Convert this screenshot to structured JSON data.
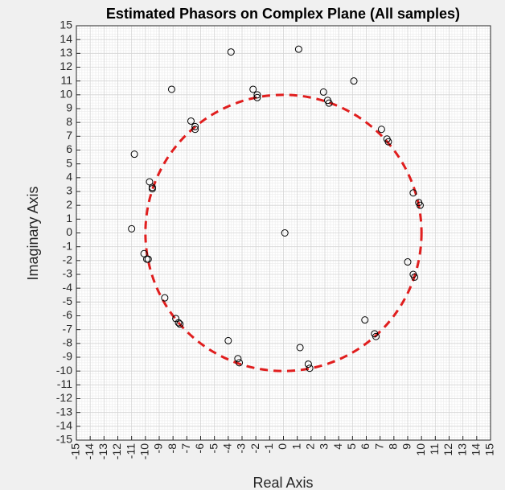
{
  "chart_data": {
    "type": "scatter",
    "title": "Estimated Phasors on Complex Plane (All samples)",
    "xlabel": "Real Axis",
    "ylabel": "Imaginary Axis",
    "xlim": [
      -15,
      15
    ],
    "ylim": [
      -15,
      15
    ],
    "xticks": [
      -15,
      -14,
      -13,
      -12,
      -11,
      -10,
      -9,
      -8,
      -7,
      -6,
      -5,
      -4,
      -3,
      -2,
      -1,
      0,
      1,
      2,
      3,
      4,
      5,
      6,
      7,
      8,
      9,
      10,
      11,
      12,
      13,
      14,
      15
    ],
    "yticks": [
      -15,
      -14,
      -13,
      -12,
      -11,
      -10,
      -9,
      -8,
      -7,
      -6,
      -5,
      -4,
      -3,
      -2,
      -1,
      0,
      1,
      2,
      3,
      4,
      5,
      6,
      7,
      8,
      9,
      10,
      11,
      12,
      13,
      14,
      15
    ],
    "grid": true,
    "minor_grid": true,
    "reference_circle": {
      "radius": 10,
      "center": [
        0,
        0
      ],
      "color": "#e01e1e",
      "style": "dashed"
    },
    "marker": {
      "shape": "open-circle",
      "color": "#000000"
    },
    "points": [
      {
        "x": 1.1,
        "y": 13.3
      },
      {
        "x": -3.8,
        "y": 13.1
      },
      {
        "x": -8.1,
        "y": 10.4
      },
      {
        "x": -2.2,
        "y": 10.4
      },
      {
        "x": -1.9,
        "y": 10.0
      },
      {
        "x": -1.9,
        "y": 9.8
      },
      {
        "x": 2.9,
        "y": 10.2
      },
      {
        "x": 3.2,
        "y": 9.6
      },
      {
        "x": 3.3,
        "y": 9.4
      },
      {
        "x": 5.1,
        "y": 11.0
      },
      {
        "x": -6.7,
        "y": 8.1
      },
      {
        "x": -6.4,
        "y": 7.7
      },
      {
        "x": -6.4,
        "y": 7.5
      },
      {
        "x": 7.1,
        "y": 7.5
      },
      {
        "x": 7.5,
        "y": 6.8
      },
      {
        "x": 7.6,
        "y": 6.6
      },
      {
        "x": -10.8,
        "y": 5.7
      },
      {
        "x": -9.7,
        "y": 3.7
      },
      {
        "x": -9.5,
        "y": 3.3
      },
      {
        "x": -9.5,
        "y": 3.2
      },
      {
        "x": 9.4,
        "y": 2.9
      },
      {
        "x": 9.8,
        "y": 2.2
      },
      {
        "x": 9.9,
        "y": 2.0
      },
      {
        "x": -11.0,
        "y": 0.3
      },
      {
        "x": 0.1,
        "y": 0.0
      },
      {
        "x": -10.1,
        "y": -1.5
      },
      {
        "x": -9.9,
        "y": -1.9
      },
      {
        "x": -9.8,
        "y": -1.9
      },
      {
        "x": 9.0,
        "y": -2.1
      },
      {
        "x": 9.4,
        "y": -3.0
      },
      {
        "x": 9.5,
        "y": -3.2
      },
      {
        "x": -8.6,
        "y": -4.7
      },
      {
        "x": -7.8,
        "y": -6.2
      },
      {
        "x": -7.6,
        "y": -6.5
      },
      {
        "x": -7.5,
        "y": -6.6
      },
      {
        "x": 5.9,
        "y": -6.3
      },
      {
        "x": 6.6,
        "y": -7.3
      },
      {
        "x": 6.7,
        "y": -7.5
      },
      {
        "x": -4.0,
        "y": -7.8
      },
      {
        "x": 1.2,
        "y": -8.3
      },
      {
        "x": -3.3,
        "y": -9.1
      },
      {
        "x": -3.2,
        "y": -9.4
      },
      {
        "x": 1.8,
        "y": -9.5
      },
      {
        "x": 1.9,
        "y": -9.8
      }
    ]
  }
}
